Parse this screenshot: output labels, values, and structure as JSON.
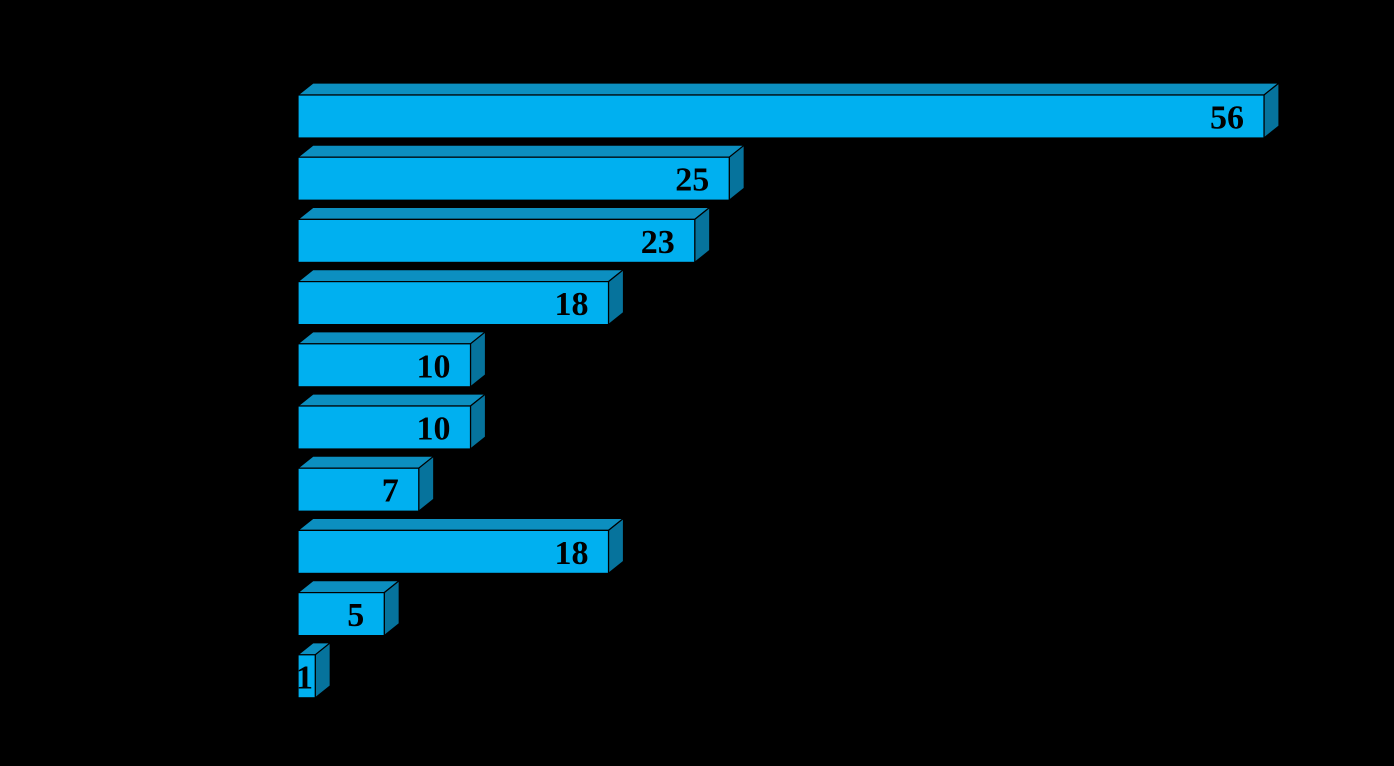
{
  "chart_data": {
    "type": "bar",
    "orientation": "horizontal",
    "style": "3d",
    "values": [
      56,
      25,
      23,
      18,
      10,
      10,
      7,
      18,
      5,
      1
    ],
    "data_labels": [
      "56",
      "25",
      "23",
      "18",
      "10",
      "10",
      "7",
      "18",
      "5",
      "1"
    ],
    "colors": {
      "background": "#000000",
      "bar_front": "#00b0f0",
      "bar_top": "#0c8fc0",
      "bar_side": "#06739c",
      "outline": "#000000",
      "label": "#000000"
    }
  }
}
